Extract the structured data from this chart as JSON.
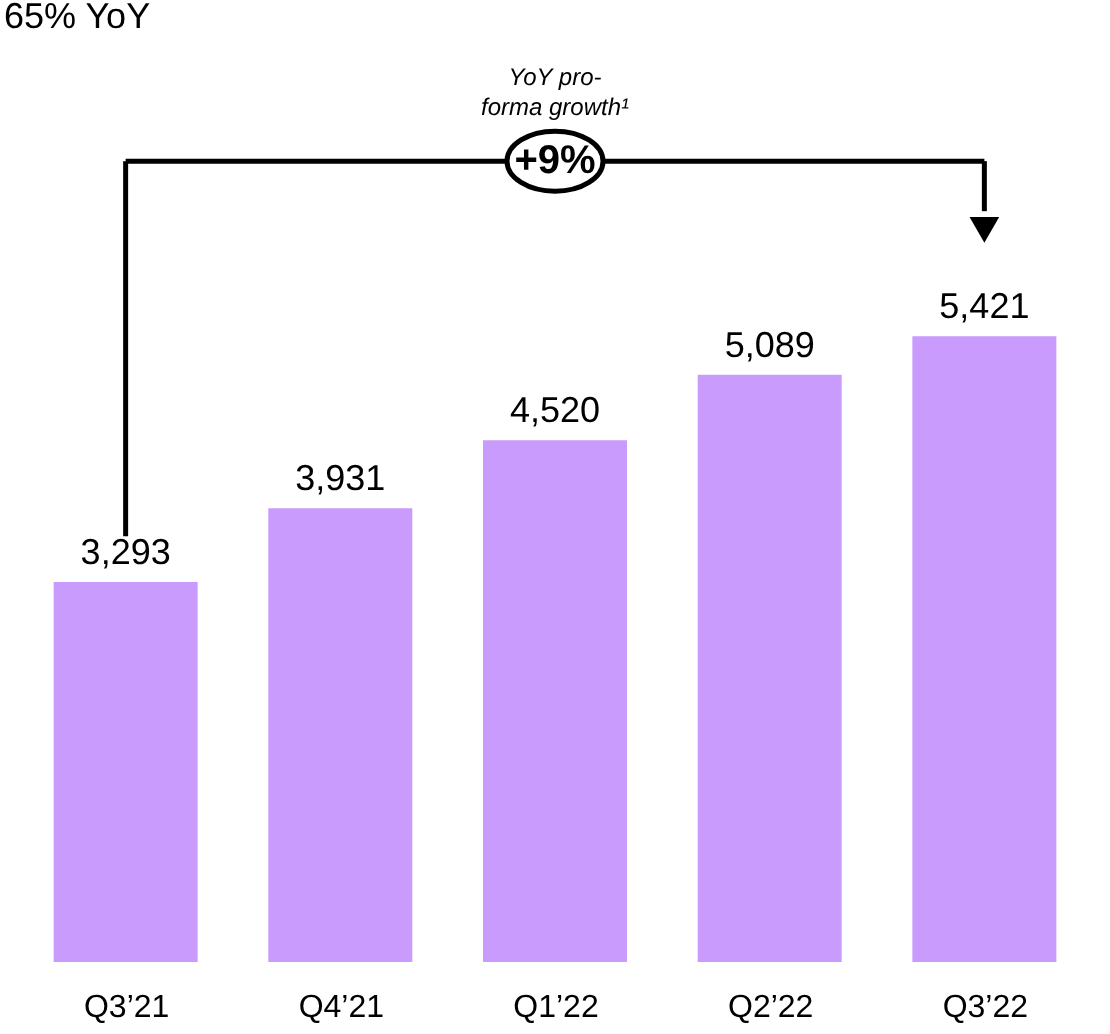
{
  "chart_data": {
    "type": "bar",
    "title": "65% YoY",
    "categories": [
      "Q3’21",
      "Q4’21",
      "Q1’22",
      "Q2’22",
      "Q3’22"
    ],
    "values": [
      3293,
      3931,
      4520,
      5089,
      5421
    ],
    "value_labels": [
      "3,293",
      "3,931",
      "4,520",
      "5,089",
      "5,421"
    ],
    "color": "#c99bfd",
    "grid": false,
    "annotations": [
      "YoY pro-forma growth¹",
      "+9%"
    ]
  }
}
